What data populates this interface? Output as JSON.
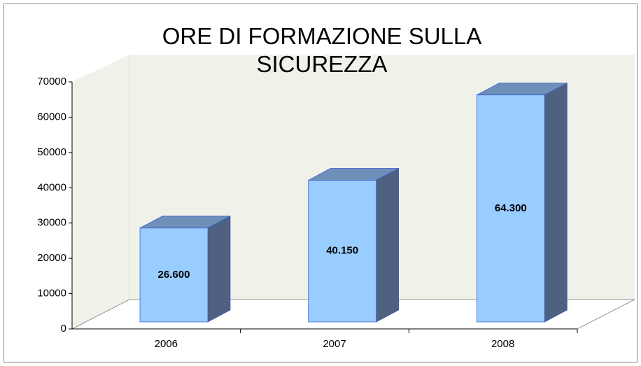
{
  "chart_data": {
    "type": "bar3d",
    "title": "ORE DI FORMAZIONE SULLA SICUREZZA",
    "categories": [
      "2006",
      "2007",
      "2008"
    ],
    "values": [
      26600,
      40150,
      64300
    ],
    "value_labels": [
      "26.600",
      "40.150",
      "64.300"
    ],
    "color": "#99ccff",
    "ylim": [
      0,
      70000
    ],
    "yticks": [
      0,
      10000,
      20000,
      30000,
      40000,
      50000,
      60000,
      70000
    ]
  }
}
